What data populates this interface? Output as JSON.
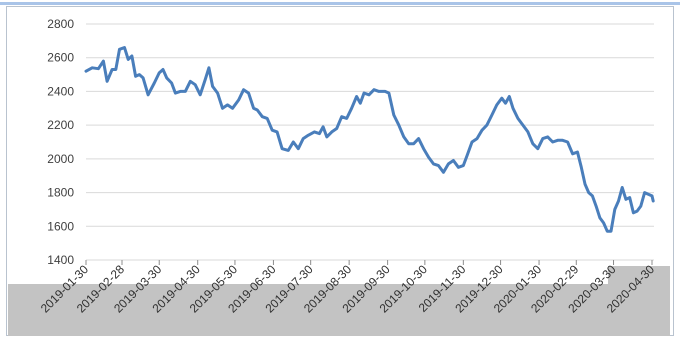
{
  "colors": {
    "line": "#4a7ebb",
    "grid": "#d9d9d9",
    "background": "#ffffff",
    "band": "#c3c3c3",
    "frame_rule": "#a9c4e8"
  },
  "chart_data": {
    "type": "line",
    "title": "",
    "xlabel": "",
    "ylabel": "",
    "ylim": [
      1400,
      2800
    ],
    "y_ticks": [
      "2800",
      "2600",
      "2400",
      "2200",
      "2000",
      "1800",
      "1600",
      "1400"
    ],
    "x_tick_labels": [
      "2019-01-30",
      "2019-02-28",
      "2019-03-30",
      "2019-04-30",
      "2019-05-30",
      "2019-06-30",
      "2019-07-30",
      "2019-08-30",
      "2019-09-30",
      "2019-10-30",
      "2019-11-30",
      "2019-12-30",
      "2020-01-30",
      "2020-02-29",
      "2020-03-30",
      "2020-04-30"
    ],
    "grid": true,
    "legend": "none",
    "series": [
      {
        "points": [
          [
            "2019-01-30",
            2520
          ],
          [
            "2019-02-04",
            2540
          ],
          [
            "2019-02-09",
            2535
          ],
          [
            "2019-02-13",
            2580
          ],
          [
            "2019-02-16",
            2460
          ],
          [
            "2019-02-20",
            2530
          ],
          [
            "2019-02-23",
            2530
          ],
          [
            "2019-02-26",
            2650
          ],
          [
            "2019-03-02",
            2660
          ],
          [
            "2019-03-05",
            2590
          ],
          [
            "2019-03-08",
            2610
          ],
          [
            "2019-03-11",
            2490
          ],
          [
            "2019-03-14",
            2500
          ],
          [
            "2019-03-17",
            2480
          ],
          [
            "2019-03-21",
            2380
          ],
          [
            "2019-03-26",
            2450
          ],
          [
            "2019-03-30",
            2510
          ],
          [
            "2019-04-02",
            2530
          ],
          [
            "2019-04-05",
            2480
          ],
          [
            "2019-04-09",
            2450
          ],
          [
            "2019-04-12",
            2390
          ],
          [
            "2019-04-16",
            2400
          ],
          [
            "2019-04-20",
            2400
          ],
          [
            "2019-04-24",
            2460
          ],
          [
            "2019-04-28",
            2440
          ],
          [
            "2019-05-02",
            2380
          ],
          [
            "2019-05-06",
            2470
          ],
          [
            "2019-05-09",
            2540
          ],
          [
            "2019-05-12",
            2430
          ],
          [
            "2019-05-16",
            2390
          ],
          [
            "2019-05-20",
            2300
          ],
          [
            "2019-05-24",
            2320
          ],
          [
            "2019-05-28",
            2300
          ],
          [
            "2019-06-02",
            2350
          ],
          [
            "2019-06-06",
            2410
          ],
          [
            "2019-06-10",
            2390
          ],
          [
            "2019-06-14",
            2300
          ],
          [
            "2019-06-17",
            2290
          ],
          [
            "2019-06-21",
            2250
          ],
          [
            "2019-06-25",
            2240
          ],
          [
            "2019-06-29",
            2170
          ],
          [
            "2019-07-03",
            2160
          ],
          [
            "2019-07-07",
            2060
          ],
          [
            "2019-07-12",
            2050
          ],
          [
            "2019-07-16",
            2100
          ],
          [
            "2019-07-20",
            2060
          ],
          [
            "2019-07-24",
            2120
          ],
          [
            "2019-07-28",
            2140
          ],
          [
            "2019-08-02",
            2160
          ],
          [
            "2019-08-06",
            2150
          ],
          [
            "2019-08-09",
            2190
          ],
          [
            "2019-08-12",
            2130
          ],
          [
            "2019-08-16",
            2160
          ],
          [
            "2019-08-20",
            2180
          ],
          [
            "2019-08-24",
            2250
          ],
          [
            "2019-08-28",
            2240
          ],
          [
            "2019-09-01",
            2300
          ],
          [
            "2019-09-05",
            2370
          ],
          [
            "2019-09-08",
            2330
          ],
          [
            "2019-09-11",
            2390
          ],
          [
            "2019-09-15",
            2380
          ],
          [
            "2019-09-19",
            2410
          ],
          [
            "2019-09-23",
            2400
          ],
          [
            "2019-09-28",
            2400
          ],
          [
            "2019-10-01",
            2390
          ],
          [
            "2019-10-05",
            2260
          ],
          [
            "2019-10-09",
            2200
          ],
          [
            "2019-10-13",
            2130
          ],
          [
            "2019-10-17",
            2090
          ],
          [
            "2019-10-21",
            2090
          ],
          [
            "2019-10-25",
            2120
          ],
          [
            "2019-10-29",
            2060
          ],
          [
            "2019-11-02",
            2010
          ],
          [
            "2019-11-06",
            1970
          ],
          [
            "2019-11-10",
            1960
          ],
          [
            "2019-11-14",
            1920
          ],
          [
            "2019-11-18",
            1970
          ],
          [
            "2019-11-22",
            1990
          ],
          [
            "2019-11-26",
            1950
          ],
          [
            "2019-11-30",
            1960
          ],
          [
            "2019-12-03",
            2020
          ],
          [
            "2019-12-07",
            2100
          ],
          [
            "2019-12-11",
            2120
          ],
          [
            "2019-12-15",
            2170
          ],
          [
            "2019-12-19",
            2200
          ],
          [
            "2019-12-23",
            2260
          ],
          [
            "2019-12-27",
            2320
          ],
          [
            "2019-12-31",
            2360
          ],
          [
            "2020-01-03",
            2330
          ],
          [
            "2020-01-06",
            2370
          ],
          [
            "2020-01-09",
            2300
          ],
          [
            "2020-01-13",
            2240
          ],
          [
            "2020-01-17",
            2200
          ],
          [
            "2020-01-21",
            2160
          ],
          [
            "2020-01-25",
            2090
          ],
          [
            "2020-01-29",
            2060
          ],
          [
            "2020-02-02",
            2120
          ],
          [
            "2020-02-06",
            2130
          ],
          [
            "2020-02-10",
            2100
          ],
          [
            "2020-02-14",
            2110
          ],
          [
            "2020-02-18",
            2110
          ],
          [
            "2020-02-22",
            2100
          ],
          [
            "2020-02-26",
            2030
          ],
          [
            "2020-03-01",
            2040
          ],
          [
            "2020-03-04",
            1950
          ],
          [
            "2020-03-07",
            1850
          ],
          [
            "2020-03-10",
            1800
          ],
          [
            "2020-03-13",
            1780
          ],
          [
            "2020-03-16",
            1720
          ],
          [
            "2020-03-19",
            1650
          ],
          [
            "2020-03-22",
            1620
          ],
          [
            "2020-03-25",
            1570
          ],
          [
            "2020-03-28",
            1570
          ],
          [
            "2020-03-31",
            1700
          ],
          [
            "2020-04-03",
            1750
          ],
          [
            "2020-04-06",
            1830
          ],
          [
            "2020-04-09",
            1760
          ],
          [
            "2020-04-12",
            1770
          ],
          [
            "2020-04-15",
            1680
          ],
          [
            "2020-04-18",
            1690
          ],
          [
            "2020-04-21",
            1720
          ],
          [
            "2020-04-24",
            1800
          ],
          [
            "2020-04-27",
            1790
          ],
          [
            "2020-04-30",
            1780
          ],
          [
            "2020-05-01",
            1750
          ]
        ]
      }
    ]
  }
}
